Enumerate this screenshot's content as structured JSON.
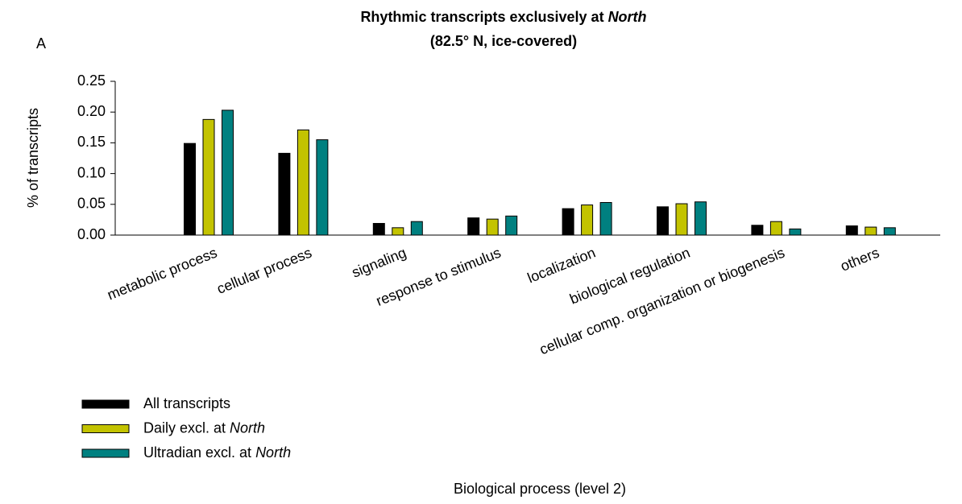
{
  "panel_label": "A",
  "chart_data": {
    "type": "bar",
    "title": [
      "Rhythmic transcripts exclusively at North",
      "(82.5° N, ice-covered)"
    ],
    "title_color": "#1a1ae6",
    "italic_words": [
      "North"
    ],
    "x_label": "Biological process (level 2)",
    "y_label": "% of transcripts",
    "categories": [
      "metabolic process",
      "cellular process",
      "signaling",
      "response to stimulus",
      "localization",
      "biological regulation",
      "cellular comp. organization or biogenesis",
      "others"
    ],
    "series": [
      {
        "name": "All transcripts",
        "color": "#000000",
        "values": [
          0.149,
          0.133,
          0.019,
          0.028,
          0.043,
          0.046,
          0.016,
          0.015
        ]
      },
      {
        "name": "Daily excl. at North",
        "color": "#c3c300",
        "values": [
          0.188,
          0.171,
          0.012,
          0.026,
          0.049,
          0.051,
          0.022,
          0.013
        ]
      },
      {
        "name": "Ultradian excl. at North",
        "color": "#008080",
        "values": [
          0.203,
          0.155,
          0.022,
          0.031,
          0.053,
          0.054,
          0.01,
          0.012
        ]
      }
    ],
    "ylim": [
      0,
      0.25
    ],
    "yticks": [
      {
        "value": 0,
        "label": "0.00"
      },
      0.05,
      {
        "value": 0.1,
        "label": "0.10"
      },
      0.15,
      {
        "value": 0.2,
        "label": "0.20"
      },
      0.25
    ],
    "grid": false,
    "legend": "bottom-left"
  }
}
